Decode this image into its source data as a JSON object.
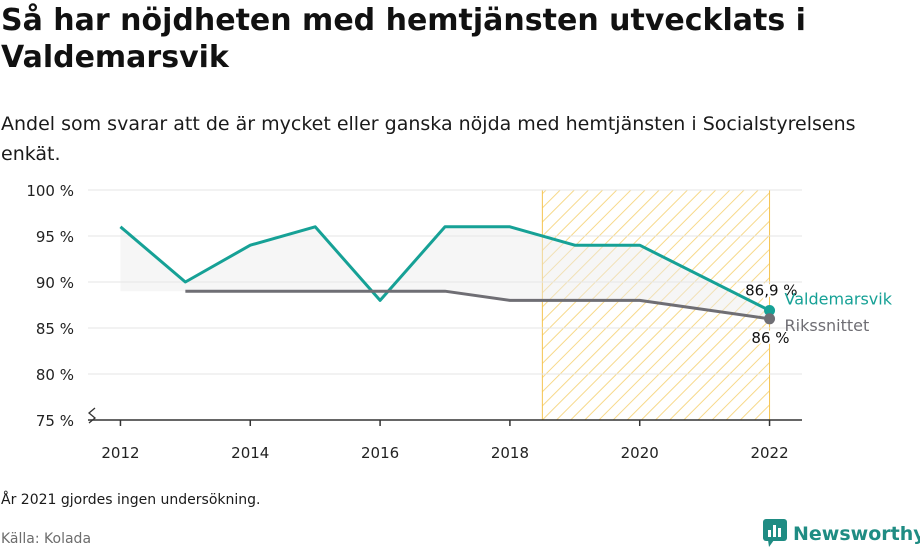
{
  "title": "Så har nöjdheten med hemtjänsten utvecklats i Valdemarsvik",
  "subtitle": "Andel som svarar att de är mycket eller ganska nöjda med hemtjänsten i Socialstyrelsens enkät.",
  "note": "År 2021 gjordes ingen undersökning.",
  "source": "Källa: Kolada",
  "brand": "Newsworthy",
  "colors": {
    "valdemarsvik": "#16a196",
    "riks": "#6f6e74",
    "highlight": "#f5c451",
    "grid": "#e4e4e4",
    "axis": "#333333"
  },
  "chart_data": {
    "type": "line",
    "x": [
      2012,
      2013,
      2014,
      2015,
      2016,
      2017,
      2018,
      2019,
      2020,
      2022
    ],
    "xticks": [
      "2012",
      "2014",
      "2016",
      "2018",
      "2020",
      "2022"
    ],
    "yticks": [
      "75 %",
      "80 %",
      "85 %",
      "90 %",
      "95 %",
      "100 %"
    ],
    "ylim": [
      75,
      100
    ],
    "xlim": [
      2011.5,
      2022.5
    ],
    "highlight_range": [
      2018.5,
      2022
    ],
    "series": [
      {
        "name": "Valdemarsvik",
        "x": [
          2012,
          2013,
          2014,
          2015,
          2016,
          2017,
          2018,
          2019,
          2020,
          2022
        ],
        "values": [
          96,
          90,
          94,
          96,
          88,
          96,
          96,
          94,
          94,
          86.9
        ],
        "end_label": "86,9 %"
      },
      {
        "name": "Rikssnittet",
        "x": [
          2013,
          2014,
          2015,
          2016,
          2017,
          2018,
          2019,
          2020,
          2022
        ],
        "values": [
          89,
          89,
          89,
          89,
          89,
          88,
          88,
          88,
          86
        ],
        "end_label": "86 %"
      }
    ]
  }
}
